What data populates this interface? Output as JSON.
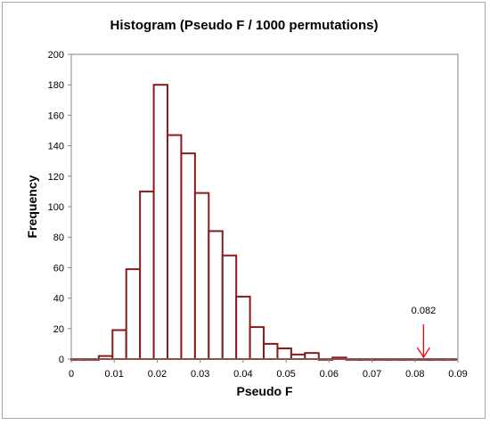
{
  "chart_data": {
    "type": "bar",
    "title": "Histogram (Pseudo F / 1000 permutations)",
    "xlabel": "Pseudo  F",
    "ylabel": "Frequency",
    "xlim": [
      0,
      0.09
    ],
    "ylim": [
      0,
      200
    ],
    "bin_width": 0.0032,
    "bins_start": [
      0,
      0.0032,
      0.0064,
      0.0096,
      0.0128,
      0.016,
      0.0192,
      0.0224,
      0.0256,
      0.0288,
      0.032,
      0.0352,
      0.0384,
      0.0416,
      0.0448,
      0.048,
      0.0512,
      0.0544,
      0.0576,
      0.0608,
      0.064,
      0.0672,
      0.0704,
      0.0736,
      0.0768,
      0.08,
      0.0832,
      0.0864
    ],
    "values": [
      0,
      0,
      2,
      19,
      59,
      110,
      180,
      147,
      135,
      109,
      84,
      68,
      41,
      21,
      10,
      7,
      3,
      4,
      0,
      1,
      0,
      0,
      0,
      0,
      0,
      0,
      0,
      0
    ],
    "x_ticks": [
      "0",
      "0.01",
      "0.02",
      "0.03",
      "0.04",
      "0.05",
      "0.06",
      "0.07",
      "0.08",
      "0.09"
    ],
    "x_tick_values": [
      0,
      0.01,
      0.02,
      0.03,
      0.04,
      0.05,
      0.06,
      0.07,
      0.08,
      0.09
    ],
    "y_ticks": [
      "0",
      "20",
      "40",
      "60",
      "80",
      "100",
      "120",
      "140",
      "160",
      "180",
      "200"
    ],
    "y_tick_values": [
      0,
      20,
      40,
      60,
      80,
      100,
      120,
      140,
      160,
      180,
      200
    ],
    "grid": false,
    "legend": "none",
    "annotation": {
      "label": "0.082",
      "x": 0.082,
      "arrow_color": "#ff0000"
    },
    "bar_fill": "#ffffff",
    "bar_stroke": "#8b1a1a"
  }
}
